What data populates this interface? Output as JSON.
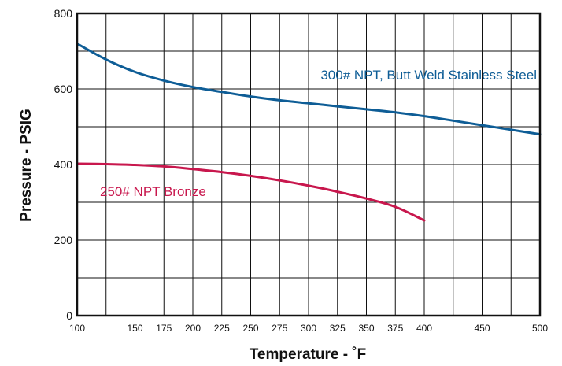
{
  "chart_data": {
    "type": "line",
    "xlabel": "Temperature - ˚F",
    "ylabel": "Pressure - PSIG",
    "xlim": [
      100,
      500
    ],
    "ylim": [
      0,
      800
    ],
    "x_ticks": [
      100,
      150,
      175,
      200,
      225,
      250,
      275,
      300,
      325,
      350,
      375,
      400,
      450,
      500
    ],
    "y_ticks": [
      0,
      200,
      400,
      600,
      800
    ],
    "grid": true,
    "series": [
      {
        "name": "300# NPT, Butt Weld Stainless Steel",
        "color": "#0e5d96",
        "x": [
          100,
          125,
          150,
          175,
          200,
          225,
          250,
          275,
          300,
          325,
          350,
          375,
          400,
          425,
          450,
          475,
          500
        ],
        "y": [
          720,
          678,
          645,
          622,
          605,
          592,
          580,
          570,
          562,
          554,
          546,
          538,
          528,
          516,
          504,
          492,
          480
        ]
      },
      {
        "name": "250# NPT Bronze",
        "color": "#c8174d",
        "x": [
          100,
          125,
          150,
          175,
          200,
          225,
          250,
          275,
          300,
          325,
          350,
          375,
          400
        ],
        "y": [
          402,
          401,
          399,
          395,
          388,
          380,
          370,
          358,
          344,
          328,
          310,
          288,
          252
        ]
      }
    ]
  }
}
